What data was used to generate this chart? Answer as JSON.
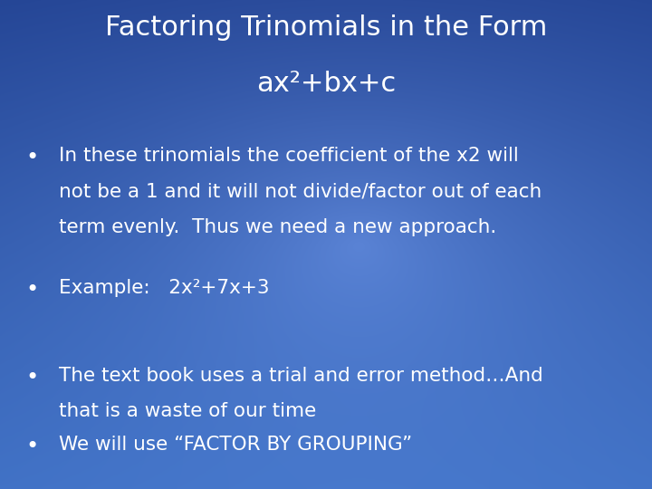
{
  "title_line1": "Factoring Trinomials in the Form",
  "title_line2": "ax²+bx+c",
  "bullet1_line1": "In these trinomials the coefficient of the x2 will",
  "bullet1_line2": "not be a 1 and it will not divide/factor out of each",
  "bullet1_line3": "term evenly.  Thus we need a new approach.",
  "bullet2": "Example:   2x²+7x+3",
  "bullet3_line1": "The text book uses a trial and error method…And",
  "bullet3_line2": "that is a waste of our time",
  "bullet4": "We will use “FACTOR BY GROUPING”",
  "bg_color_top": "#1e3f8f",
  "bg_color_bottom": "#3a6bbf",
  "text_color": "#ffffff",
  "title_fontsize": 22,
  "body_fontsize": 15.5,
  "fig_width": 7.2,
  "fig_height": 5.4
}
